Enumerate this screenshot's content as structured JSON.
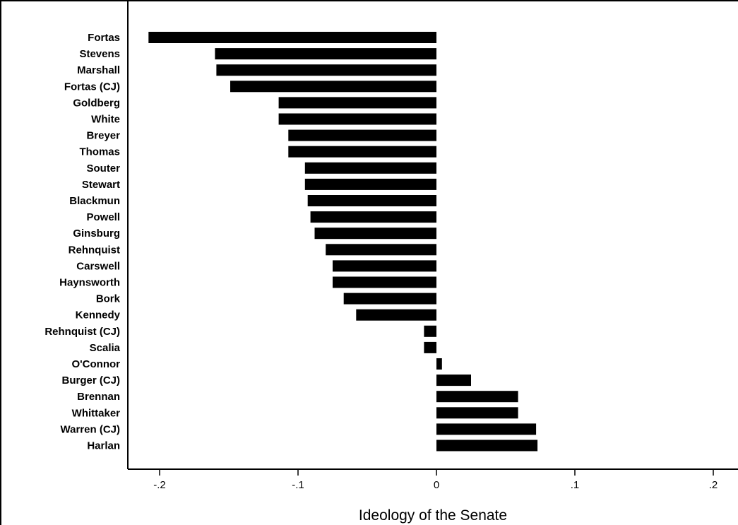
{
  "chart_data": {
    "type": "bar",
    "orientation": "horizontal",
    "categories": [
      "Fortas",
      "Stevens",
      "Marshall",
      "Fortas (CJ)",
      "Goldberg",
      "White",
      "Breyer",
      "Thomas",
      "Souter",
      "Stewart",
      "Blackmun",
      "Powell",
      "Ginsburg",
      "Rehnquist",
      "Carswell",
      "Haynsworth",
      "Bork",
      "Kennedy",
      "Rehnquist (CJ)",
      "Scalia",
      "O'Connor",
      "Burger (CJ)",
      "Brennan",
      "Whittaker",
      "Warren (CJ)",
      "Harlan"
    ],
    "values": [
      -0.208,
      -0.16,
      -0.159,
      -0.149,
      -0.114,
      -0.114,
      -0.107,
      -0.107,
      -0.095,
      -0.095,
      -0.093,
      -0.091,
      -0.088,
      -0.08,
      -0.075,
      -0.075,
      -0.067,
      -0.058,
      -0.009,
      -0.009,
      0.004,
      0.025,
      0.059,
      0.059,
      0.072,
      0.073
    ],
    "xlabel": "Ideology of the Senate",
    "xlim": [
      -0.22,
      0.215
    ],
    "xticks": [
      -0.2,
      -0.1,
      0,
      0.1,
      0.2
    ],
    "xtick_labels": [
      "-.2",
      "-.1",
      "0",
      ".1",
      ".2"
    ],
    "bar_color": "#000000"
  }
}
